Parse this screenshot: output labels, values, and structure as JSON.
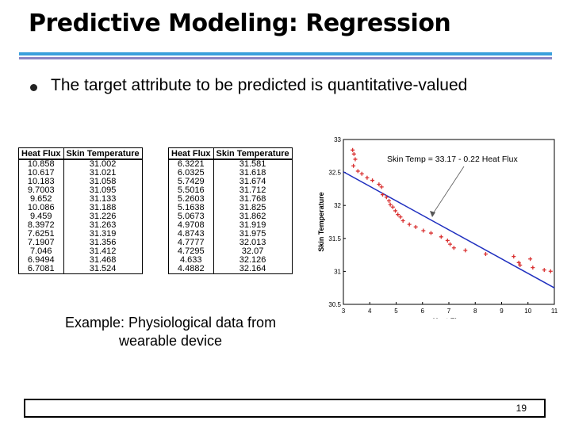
{
  "title": "Predictive Modeling: Regression",
  "bullet": "The target attribute to  be predicted is quantitative-valued",
  "table_headers": [
    "Heat Flux",
    "Skin Temperature"
  ],
  "table1": [
    [
      "10.858",
      "31.002"
    ],
    [
      "10.617",
      "31.021"
    ],
    [
      "10.183",
      "31.058"
    ],
    [
      "9.7003",
      "31.095"
    ],
    [
      "9.652",
      "31.133"
    ],
    [
      "10.086",
      "31.188"
    ],
    [
      "9.459",
      "31.226"
    ],
    [
      "8.3972",
      "31.263"
    ],
    [
      "7.6251",
      "31.319"
    ],
    [
      "7.1907",
      "31.356"
    ],
    [
      "7.046",
      "31.412"
    ],
    [
      "6.9494",
      "31.468"
    ],
    [
      "6.7081",
      "31.524"
    ]
  ],
  "table2": [
    [
      "6.3221",
      "31.581"
    ],
    [
      "6.0325",
      "31.618"
    ],
    [
      "5.7429",
      "31.674"
    ],
    [
      "5.5016",
      "31.712"
    ],
    [
      "5.2603",
      "31.768"
    ],
    [
      "5.1638",
      "31.825"
    ],
    [
      "5.0673",
      "31.862"
    ],
    [
      "4.9708",
      "31.919"
    ],
    [
      "4.8743",
      "31.975"
    ],
    [
      "4.7777",
      "32.013"
    ],
    [
      "4.7295",
      "32.07"
    ],
    [
      "4.633",
      "32.126"
    ],
    [
      "4.4882",
      "32.164"
    ]
  ],
  "caption": "Example: Physiological data from wearable device",
  "page_number": "19",
  "colors": {
    "rule_blue": "#3aa0dc",
    "rule_purple": "#8a86c4",
    "points": "#d93030",
    "fit_line": "#1f2fbf"
  },
  "chart_data": {
    "type": "scatter",
    "xlabel": "Heat Flux",
    "ylabel": "Skin Temperature",
    "xlim": [
      3,
      11
    ],
    "ylim": [
      30.5,
      33
    ],
    "xticks": [
      3,
      4,
      5,
      6,
      7,
      8,
      9,
      10,
      11
    ],
    "yticks": [
      30.5,
      31,
      31.5,
      32,
      32.5,
      33
    ],
    "annotation": "Skin Temp = 33.17 - 0.22 Heat Flux",
    "fit": {
      "intercept": 33.17,
      "slope": -0.22
    },
    "points": [
      [
        3.35,
        32.84
      ],
      [
        3.4,
        32.78
      ],
      [
        3.45,
        32.7
      ],
      [
        3.38,
        32.6
      ],
      [
        3.55,
        32.52
      ],
      [
        3.7,
        32.48
      ],
      [
        3.9,
        32.42
      ],
      [
        4.1,
        32.38
      ],
      [
        4.35,
        32.32
      ],
      [
        4.45,
        32.28
      ],
      [
        4.488,
        32.164
      ],
      [
        4.633,
        32.126
      ],
      [
        4.7295,
        32.07
      ],
      [
        4.7777,
        32.013
      ],
      [
        4.8743,
        31.975
      ],
      [
        4.9708,
        31.919
      ],
      [
        5.0673,
        31.862
      ],
      [
        5.1638,
        31.825
      ],
      [
        5.2603,
        31.768
      ],
      [
        5.5016,
        31.712
      ],
      [
        5.7429,
        31.674
      ],
      [
        6.0325,
        31.618
      ],
      [
        6.3221,
        31.581
      ],
      [
        6.7081,
        31.524
      ],
      [
        6.9494,
        31.468
      ],
      [
        7.046,
        31.412
      ],
      [
        7.1907,
        31.356
      ],
      [
        7.6251,
        31.319
      ],
      [
        8.3972,
        31.263
      ],
      [
        9.459,
        31.226
      ],
      [
        10.086,
        31.188
      ],
      [
        9.652,
        31.133
      ],
      [
        9.7003,
        31.095
      ],
      [
        10.183,
        31.058
      ],
      [
        10.617,
        31.021
      ],
      [
        10.858,
        31.002
      ]
    ]
  }
}
